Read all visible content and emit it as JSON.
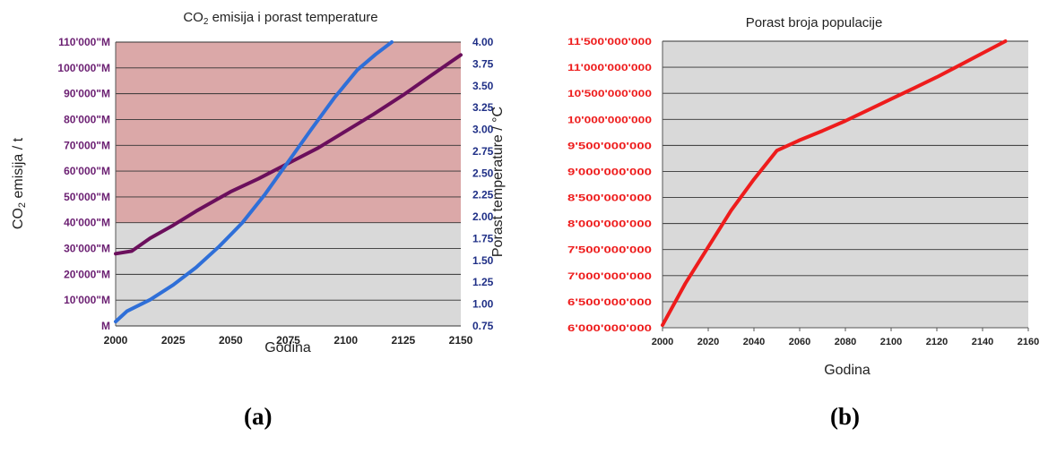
{
  "captions": {
    "a": "(a)",
    "b": "(b)"
  },
  "chart_data": [
    {
      "type": "line",
      "title": "CO₂ emisija i porast temperature",
      "xlabel": "Godina",
      "ylabel": "CO₂ emisija / t",
      "y2label": "Porast temperature / °C",
      "xlim": [
        2000,
        2150
      ],
      "ylim": [
        0,
        110000
      ],
      "y2lim": [
        0.75,
        4.0
      ],
      "grid": true,
      "shaded_region": {
        "y_from": 40000,
        "y_to": 110000,
        "color": "#dba8a8"
      },
      "background_color": "#d9d9d9",
      "x_ticks": [
        "2000",
        "2025",
        "2050",
        "2075",
        "2100",
        "2125",
        "2150"
      ],
      "y_ticks": [
        "M",
        "10'000\"M",
        "20'000\"M",
        "30'000\"M",
        "40'000\"M",
        "50'000\"M",
        "60'000\"M",
        "70'000\"M",
        "80'000\"M",
        "90'000\"M",
        "100'000\"M",
        "110'000\"M"
      ],
      "y2_ticks": [
        "0.75",
        "1.00",
        "1.25",
        "1.50",
        "1.75",
        "2.00",
        "2.25",
        "2.50",
        "2.75",
        "3.00",
        "3.25",
        "3.50",
        "3.75",
        "4.00"
      ],
      "series": [
        {
          "axis": "left",
          "color": "#6b0f5c",
          "points": [
            [
              2000,
              28000
            ],
            [
              2007,
              29000
            ],
            [
              2015,
              34000
            ],
            [
              2025,
              39000
            ],
            [
              2035,
              44500
            ],
            [
              2045,
              49500
            ],
            [
              2050,
              52000
            ],
            [
              2062,
              57000
            ],
            [
              2075,
              63000
            ],
            [
              2088,
              69000
            ],
            [
              2100,
              75500
            ],
            [
              2112,
              82000
            ],
            [
              2125,
              89500
            ],
            [
              2137,
              97000
            ],
            [
              2150,
              105000
            ]
          ]
        },
        {
          "axis": "right",
          "color": "#2f6fd8",
          "points": [
            [
              2000,
              0.8
            ],
            [
              2005,
              0.92
            ],
            [
              2015,
              1.05
            ],
            [
              2025,
              1.22
            ],
            [
              2035,
              1.42
            ],
            [
              2045,
              1.66
            ],
            [
              2055,
              1.93
            ],
            [
              2065,
              2.26
            ],
            [
              2075,
              2.63
            ],
            [
              2085,
              3.0
            ],
            [
              2095,
              3.36
            ],
            [
              2105,
              3.68
            ],
            [
              2113,
              3.86
            ],
            [
              2120,
              4.0
            ]
          ]
        }
      ]
    },
    {
      "type": "line",
      "title": "Porast broja populacije",
      "xlabel": "Godina",
      "ylabel": "",
      "xlim": [
        2000,
        2160
      ],
      "ylim": [
        6000000000,
        11500000000
      ],
      "grid": true,
      "background_color": "#d9d9d9",
      "x_ticks": [
        "2000",
        "2020",
        "2040",
        "2060",
        "2080",
        "2100",
        "2120",
        "2140",
        "2160"
      ],
      "y_ticks": [
        "6'000'000'000",
        "6'500'000'000",
        "7'000'000'000",
        "7'500'000'000",
        "8'000'000'000",
        "8'500'000'000",
        "9'000'000'000",
        "9'500'000'000",
        "10'000'000'000",
        "10'500'000'000",
        "11'000'000'000",
        "11'500'000'000"
      ],
      "series": [
        {
          "color": "#ee1c1c",
          "points": [
            [
              2000,
              6050000000
            ],
            [
              2010,
              6850000000
            ],
            [
              2020,
              7550000000
            ],
            [
              2030,
              8250000000
            ],
            [
              2040,
              8850000000
            ],
            [
              2050,
              9400000000
            ],
            [
              2060,
              9600000000
            ],
            [
              2070,
              9780000000
            ],
            [
              2080,
              9970000000
            ],
            [
              2090,
              10180000000
            ],
            [
              2100,
              10390000000
            ],
            [
              2110,
              10600000000
            ],
            [
              2120,
              10810000000
            ],
            [
              2130,
              11040000000
            ],
            [
              2140,
              11270000000
            ],
            [
              2150,
              11500000000
            ]
          ]
        }
      ]
    }
  ]
}
